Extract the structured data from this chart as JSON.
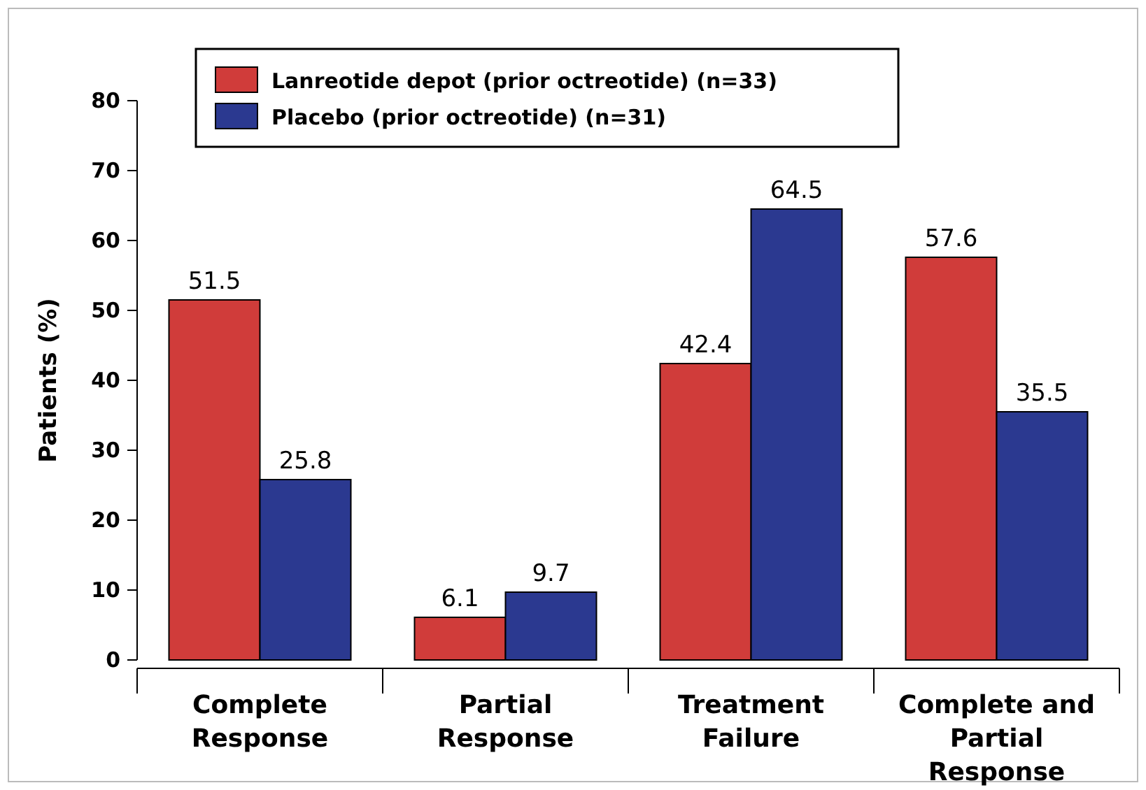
{
  "chart_data": {
    "type": "bar",
    "ylabel": "Patients (%)",
    "categories": [
      "Complete Response",
      "Partial Response",
      "Treatment Failure",
      "Complete and Partial Response"
    ],
    "series": [
      {
        "name": "Lanreotide depot (prior octreotide) (n=33)",
        "color": "#d03c3a",
        "values": [
          51.5,
          6.1,
          42.4,
          57.6
        ]
      },
      {
        "name": "Placebo (prior octreotide) (n=31)",
        "color": "#2b3990",
        "values": [
          25.8,
          9.7,
          64.5,
          35.5
        ]
      }
    ],
    "ylim": [
      0,
      80
    ],
    "yticks": [
      0,
      10,
      20,
      30,
      40,
      50,
      60,
      70,
      80
    ],
    "data_labels": true,
    "legend": "top left",
    "grid": false
  }
}
